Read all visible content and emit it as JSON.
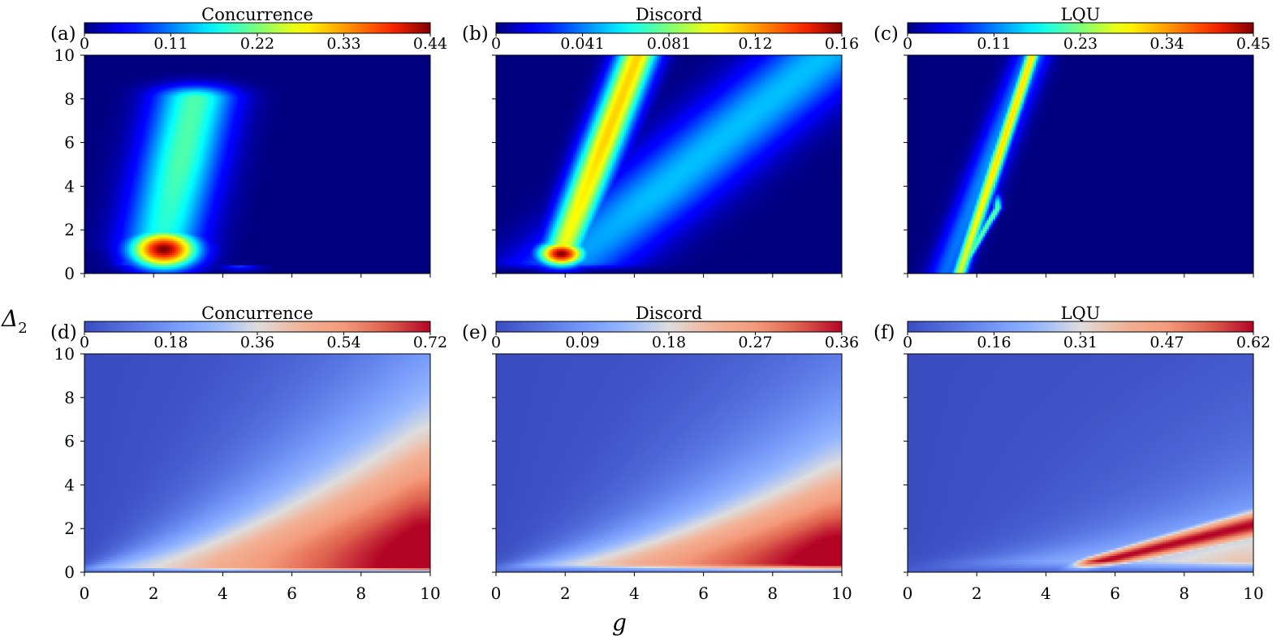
{
  "figure": {
    "ylabel": "Δ",
    "ylabel_sub": "2",
    "xlabel": "g"
  },
  "chart_data": [
    {
      "panel": "(a)",
      "title": "Concurrence",
      "type": "heatmap",
      "colormap": "jet",
      "colorbar_ticks": [
        "0",
        "0.11",
        "0.22",
        "0.33",
        "0.44"
      ],
      "vmin": 0,
      "vmax": 0.44,
      "xlim": [
        0,
        10
      ],
      "ylim": [
        0,
        10
      ],
      "xticks": [
        0,
        2,
        4,
        6,
        8,
        10
      ],
      "yticks": [
        0,
        2,
        4,
        6,
        8,
        10
      ],
      "show_xtick_labels": false,
      "show_ytick_labels": true,
      "features": [
        {
          "kind": "blob",
          "g": 2.3,
          "d": 1.1,
          "sg": 0.95,
          "sd": 0.85,
          "value": 0.44
        },
        {
          "kind": "ridge",
          "gs": 2.2,
          "ds": 1.2,
          "ge": 3.2,
          "de": 8.0,
          "sg": 1.15,
          "sd": 3.8,
          "value": 0.2
        },
        {
          "kind": "ridge",
          "gs": 1.4,
          "ds": 0.4,
          "ge": 4.5,
          "de": 0.35,
          "sg": 0.55,
          "sd": 0.18,
          "value": 0.1
        }
      ]
    },
    {
      "panel": "(b)",
      "title": "Discord",
      "type": "heatmap",
      "colormap": "jet",
      "colorbar_ticks": [
        "0",
        "0.041",
        "0.081",
        "0.12",
        "0.16"
      ],
      "vmin": 0,
      "vmax": 0.16,
      "xlim": [
        0,
        10
      ],
      "ylim": [
        0,
        10
      ],
      "xticks": [
        0,
        2,
        4,
        6,
        8,
        10
      ],
      "yticks": [
        0,
        2,
        4,
        6,
        8,
        10
      ],
      "show_xtick_labels": false,
      "show_ytick_labels": false,
      "features": [
        {
          "kind": "blob",
          "g": 1.9,
          "d": 0.9,
          "sg": 0.65,
          "sd": 0.55,
          "value": 0.16
        },
        {
          "kind": "ridge",
          "gs": 1.9,
          "ds": 1.0,
          "ge": 4.1,
          "de": 10.0,
          "sg": 0.6,
          "sd": 5.0,
          "value": 0.11
        },
        {
          "kind": "ridge",
          "gs": 2.2,
          "ds": 0.5,
          "ge": 9.5,
          "de": 10.0,
          "sg": 1.8,
          "sd": 3.0,
          "value": 0.05
        },
        {
          "kind": "ridge",
          "gs": 1.5,
          "ds": 0.4,
          "ge": 4.0,
          "de": 0.4,
          "sg": 0.5,
          "sd": 0.2,
          "value": 0.04
        }
      ]
    },
    {
      "panel": "(c)",
      "title": "LQU",
      "type": "heatmap",
      "colormap": "jet",
      "colorbar_ticks": [
        "0",
        "0.11",
        "0.23",
        "0.34",
        "0.45"
      ],
      "vmin": 0,
      "vmax": 0.45,
      "xlim": [
        0,
        10
      ],
      "ylim": [
        0,
        10
      ],
      "xticks": [
        0,
        2,
        4,
        6,
        8,
        10
      ],
      "yticks": [
        0,
        2,
        4,
        6,
        8,
        10
      ],
      "show_xtick_labels": false,
      "show_ytick_labels": false,
      "features": [
        {
          "kind": "ridge",
          "gs": 1.5,
          "ds": 0.0,
          "ge": 3.6,
          "de": 10.0,
          "sg": 0.22,
          "sd": 5.0,
          "value": 0.3
        },
        {
          "kind": "ridge",
          "gs": 1.5,
          "ds": 0.0,
          "ge": 2.6,
          "de": 3.0,
          "sg": 0.12,
          "sd": 1.5,
          "value": 0.22
        },
        {
          "kind": "ridge",
          "gs": 1.1,
          "ds": 0.0,
          "ge": 3.6,
          "de": 10.0,
          "sg": 0.5,
          "sd": 5.0,
          "value": 0.12
        }
      ]
    },
    {
      "panel": "(d)",
      "title": "Concurrence",
      "type": "heatmap",
      "colormap": "coolwarm",
      "colorbar_ticks": [
        "0",
        "0.18",
        "0.36",
        "0.54",
        "0.72"
      ],
      "vmin": 0,
      "vmax": 0.72,
      "xlim": [
        0,
        10
      ],
      "ylim": [
        0,
        10
      ],
      "xticks": [
        0,
        2,
        4,
        6,
        8,
        10
      ],
      "yticks": [
        0,
        2,
        4,
        6,
        8,
        10
      ],
      "show_xtick_labels": true,
      "show_ytick_labels": true,
      "features": [
        {
          "kind": "wedge",
          "a": 6.0,
          "power": 1.1,
          "value": 0.72
        },
        {
          "kind": "floor",
          "d": 0.2,
          "value": 0.0
        }
      ]
    },
    {
      "panel": "(e)",
      "title": "Discord",
      "type": "heatmap",
      "colormap": "coolwarm",
      "colorbar_ticks": [
        "0",
        "0.09",
        "0.18",
        "0.27",
        "0.36"
      ],
      "vmin": 0,
      "vmax": 0.36,
      "xlim": [
        0,
        10
      ],
      "ylim": [
        0,
        10
      ],
      "xticks": [
        0,
        2,
        4,
        6,
        8,
        10
      ],
      "yticks": [
        0,
        2,
        4,
        6,
        8,
        10
      ],
      "show_xtick_labels": true,
      "show_ytick_labels": false,
      "features": [
        {
          "kind": "wedge",
          "a": 4.4,
          "power": 1.15,
          "value": 0.36
        },
        {
          "kind": "floor",
          "d": 0.35,
          "value": 0.0
        }
      ]
    },
    {
      "panel": "(f)",
      "title": "LQU",
      "type": "heatmap",
      "colormap": "coolwarm",
      "colorbar_ticks": [
        "0",
        "0.16",
        "0.31",
        "0.47",
        "0.62"
      ],
      "vmin": 0,
      "vmax": 0.62,
      "xlim": [
        0,
        10
      ],
      "ylim": [
        0,
        10
      ],
      "xticks": [
        0,
        2,
        4,
        6,
        8,
        10
      ],
      "yticks": [
        0,
        2,
        4,
        6,
        8,
        10
      ],
      "show_xtick_labels": true,
      "show_ytick_labels": false,
      "features": [
        {
          "kind": "band",
          "g0": 4.3,
          "slope": 0.38,
          "value": 0.62
        },
        {
          "kind": "wedge",
          "a": 2.4,
          "power": 1.2,
          "value": 0.31
        },
        {
          "kind": "floor",
          "d": 0.5,
          "value": 0.0
        }
      ]
    }
  ]
}
